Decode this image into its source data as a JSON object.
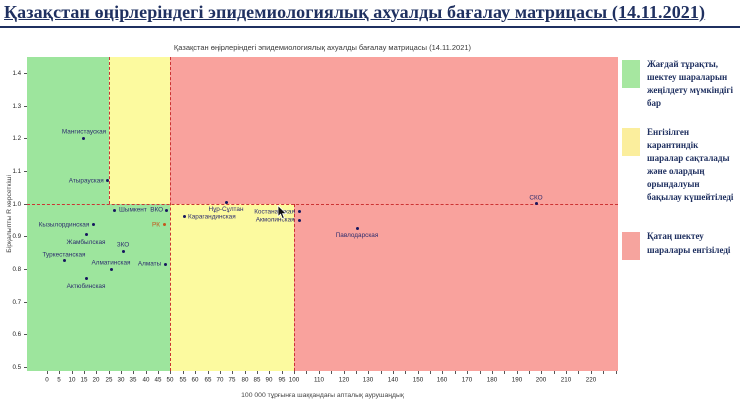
{
  "header": {
    "title": "Қазақстан өңірлеріндегі эпидемиологиялық ахуалды бағалау матрицасы  (14.11.2021)"
  },
  "chart_data": {
    "type": "scatter",
    "title": "Қазақстан өңірлеріндегі эпидемиологиялық ахуалды бағалау матрицасы (14.11.2021)",
    "xlabel": "100 000 тұрғынға шаққандағы апталық аурушаңдық",
    "ylabel": "Бірқалыпты R көрсеткіші",
    "xlim": [
      -8,
      231
    ],
    "ylim": [
      0.488,
      1.449
    ],
    "x_axis": {
      "minor_step": 5,
      "minor_max": 230,
      "labeled_ticks": [
        0,
        5,
        10,
        15,
        20,
        25,
        30,
        35,
        40,
        45,
        50,
        55,
        60,
        65,
        70,
        75,
        80,
        85,
        90,
        95,
        100,
        110,
        120,
        130,
        140,
        150,
        160,
        170,
        180,
        190,
        200,
        210,
        220
      ]
    },
    "y_axis": {
      "labeled_ticks": [
        "0.5",
        "0.6",
        "0.7",
        "0.8",
        "0.9",
        "1.0",
        "1.1",
        "1.2",
        "1.3",
        "1.4"
      ]
    },
    "zone_colors": {
      "green": "#9de59d",
      "yellow": "#fcfa9f",
      "red": "#f9a29d"
    },
    "zones": [
      {
        "x0": -8,
        "x1": 25,
        "y0": 1.0,
        "y1": 1.449,
        "color": "green"
      },
      {
        "x0": 25,
        "x1": 50,
        "y0": 1.0,
        "y1": 1.449,
        "color": "yellow"
      },
      {
        "x0": 50,
        "x1": 231,
        "y0": 1.0,
        "y1": 1.449,
        "color": "red"
      },
      {
        "x0": -8,
        "x1": 50,
        "y0": 0.488,
        "y1": 1.0,
        "color": "green"
      },
      {
        "x0": 50,
        "x1": 100,
        "y0": 0.488,
        "y1": 1.0,
        "color": "yellow"
      },
      {
        "x0": 100,
        "x1": 231,
        "y0": 0.488,
        "y1": 1.0,
        "color": "red"
      }
    ],
    "threshold_color": "#cc3333",
    "threshold_lines": [
      {
        "o": "h",
        "at": 1.0,
        "from": -8,
        "to": 231
      },
      {
        "o": "v",
        "at": 25,
        "from": 1.0,
        "to": 1.449
      },
      {
        "o": "v",
        "at": 50,
        "from": 0.488,
        "to": 1.449
      },
      {
        "o": "v",
        "at": 100,
        "from": 0.488,
        "to": 1.0
      }
    ],
    "point_color": "#16165e",
    "points": [
      {
        "name": "Мангистауская",
        "x": 15,
        "y": 1.2,
        "label_pos": "above"
      },
      {
        "name": "Атырауская",
        "x": 24.5,
        "y": 1.07,
        "label_pos": "left"
      },
      {
        "name": "Шымкент",
        "x": 27.5,
        "y": 0.98,
        "label_pos": "right"
      },
      {
        "name": "ВКО",
        "x": 48.5,
        "y": 0.98,
        "label_pos": "left"
      },
      {
        "name": "РК",
        "x": 47.5,
        "y": 0.935,
        "label_pos": "left",
        "color": "#c4561c"
      },
      {
        "name": "Кызылординская",
        "x": 19,
        "y": 0.935,
        "label_pos": "left"
      },
      {
        "name": "Жамбылская",
        "x": 16,
        "y": 0.905,
        "label_pos": "below"
      },
      {
        "name": "ЗКО",
        "x": 31,
        "y": 0.855,
        "label_pos": "above"
      },
      {
        "name": "Туркестанская",
        "x": 7,
        "y": 0.825,
        "label_pos": "above"
      },
      {
        "name": "Алматинская",
        "x": 26,
        "y": 0.8,
        "label_pos": "above"
      },
      {
        "name": "Алматы",
        "x": 48,
        "y": 0.815,
        "label_pos": "left"
      },
      {
        "name": "Актюбинская",
        "x": 16,
        "y": 0.77,
        "label_pos": "below"
      },
      {
        "name": "Нұр-Сұлтан",
        "x": 72.5,
        "y": 1.005,
        "label_pos": "below"
      },
      {
        "name": "Карагандинская",
        "x": 55.5,
        "y": 0.96,
        "label_pos": "right"
      },
      {
        "name": "Костанайская",
        "x": 102,
        "y": 0.975,
        "label_pos": "left"
      },
      {
        "name": "Акмолинская",
        "x": 102,
        "y": 0.95,
        "label_pos": "left"
      },
      {
        "name": "Павлодарская",
        "x": 125.5,
        "y": 0.925,
        "label_pos": "below"
      },
      {
        "name": "СКО",
        "x": 198,
        "y": 1.0,
        "label_pos": "above"
      }
    ]
  },
  "legend": {
    "items": [
      {
        "color": "#a6e7a0",
        "text": "Жағдай тұрақты, шектеу шараларын жеңілдету мүмкіндігі бар"
      },
      {
        "color": "#fbee9d",
        "text": "Енгізілген карантиндік шаралар сақталады және олардың орындалуын бақылау күшейтіледі"
      },
      {
        "color": "#f6a49e",
        "text": "Қатаң шектеу шаралары енгізіледі"
      }
    ]
  }
}
